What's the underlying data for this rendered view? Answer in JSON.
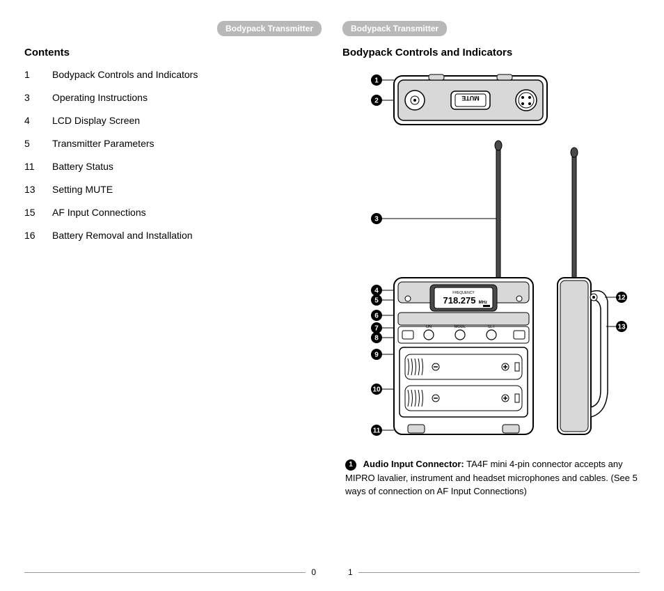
{
  "header_left": "Bodypack Transmitter",
  "header_right": "Bodypack Transmitter",
  "contents_heading": "Contents",
  "controls_heading": "Bodypack Controls and Indicators",
  "toc": [
    {
      "num": "1",
      "text": "Bodypack Controls and Indicators"
    },
    {
      "num": "3",
      "text": "Operating Instructions"
    },
    {
      "num": "4",
      "text": "LCD Display Screen"
    },
    {
      "num": "5",
      "text": "Transmitter Parameters"
    },
    {
      "num": "11",
      "text": "Battery Status"
    },
    {
      "num": "13",
      "text": "Setting MUTE"
    },
    {
      "num": "15",
      "text": "AF Input Connections"
    },
    {
      "num": "16",
      "text": "Battery Removal and Installation"
    }
  ],
  "page_num_left": "0",
  "page_num_right": "1",
  "desc_num": "1",
  "desc_title": "Audio Input Connector:",
  "desc_body": "TA4F mini 4-pin connector accepts any MIPRO lavalier, instrument and headset microphones and cables. (See 5 ways of connection on AF Input Connections)",
  "diagram": {
    "lcd_label": "FREQUENCY",
    "lcd_value": "718.275",
    "lcd_unit": "MHz",
    "mute_label": "MUTE",
    "btn_on": "ON",
    "btn_mode": "MODE",
    "btn_set": "SET",
    "callouts_left": [
      "1",
      "2",
      "3",
      "4",
      "5",
      "6",
      "7",
      "8",
      "9",
      "10",
      "11"
    ],
    "callouts_right": [
      "12",
      "13"
    ],
    "colors": {
      "stroke": "#000000",
      "fill_body": "#ffffff",
      "fill_shade": "#d8d8d8",
      "fill_dark": "#4a4a4a"
    }
  }
}
